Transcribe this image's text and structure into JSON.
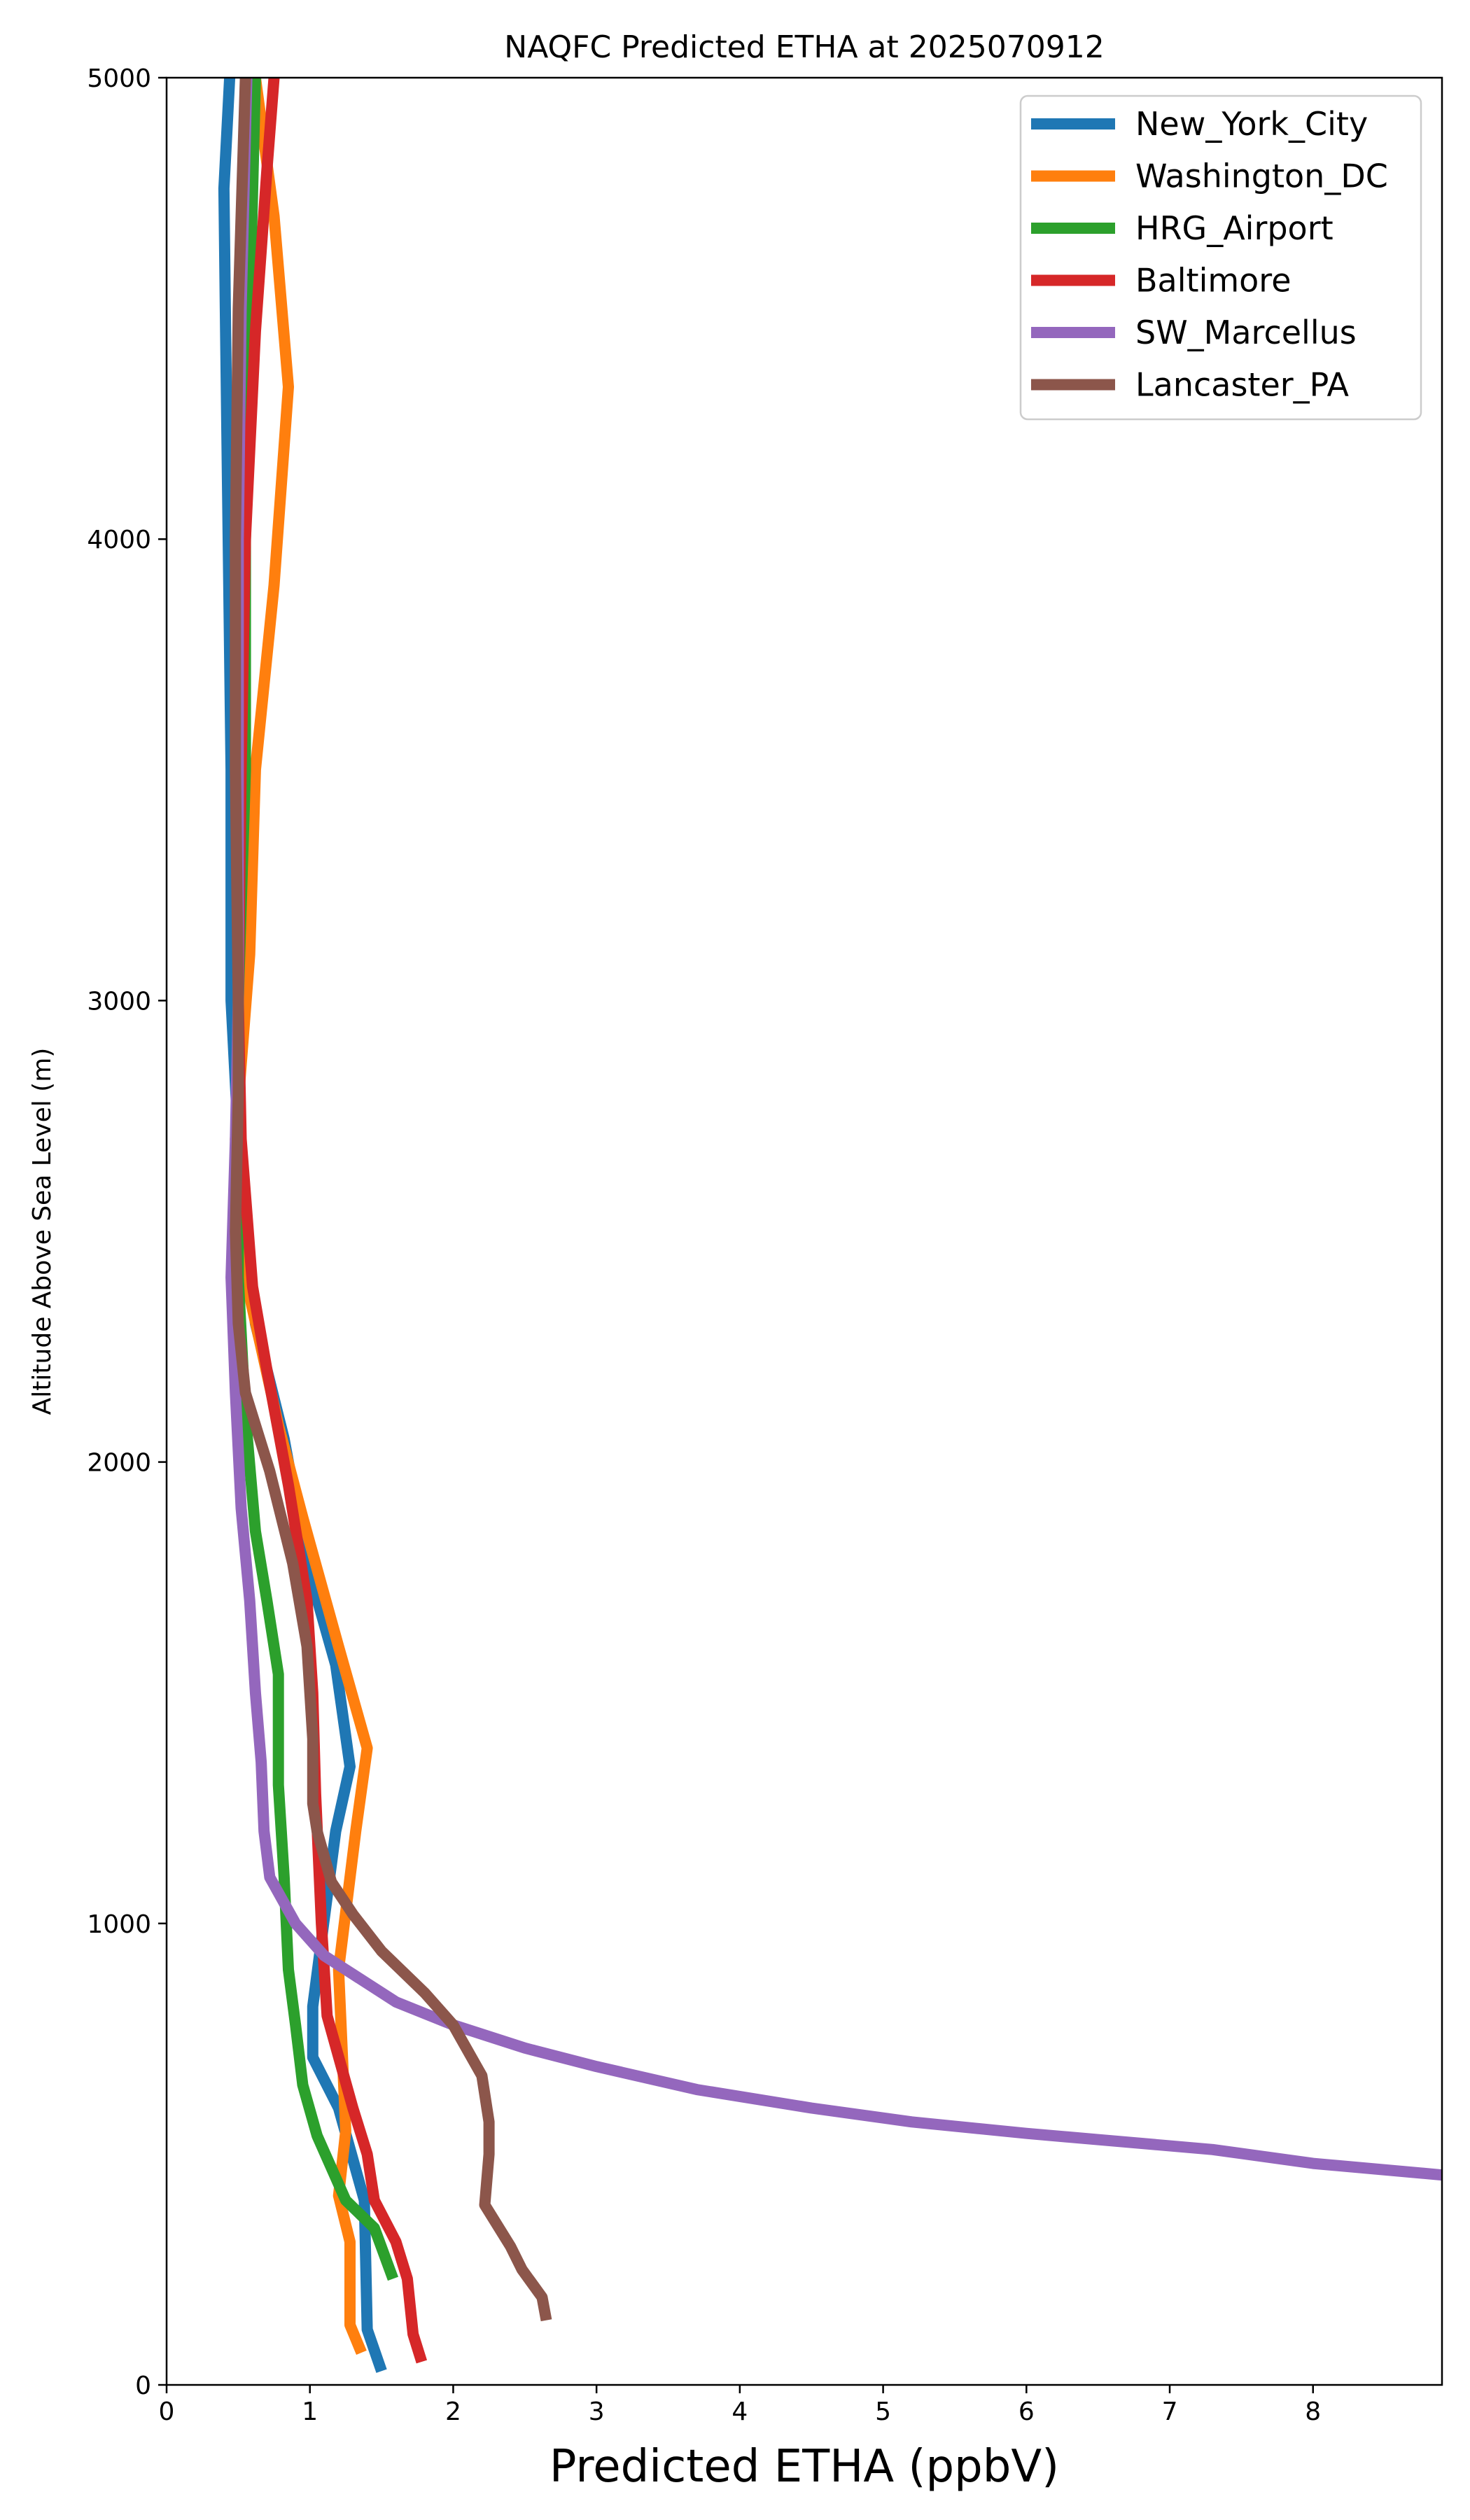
{
  "chart_data": {
    "type": "line",
    "title": "NAQFC Predicted ETHA at 2025070912",
    "xlabel": "Predicted ETHA (ppbV)",
    "ylabel": "Altitude Above Sea Level (m)",
    "xlim": [
      0,
      8.9
    ],
    "ylim": [
      0,
      5000
    ],
    "xticks": [
      0,
      1,
      2,
      3,
      4,
      5,
      6,
      7,
      8
    ],
    "yticks": [
      0,
      1000,
      2000,
      3000,
      4000,
      5000
    ],
    "grid": false,
    "legend_position": "top-right",
    "series": [
      {
        "name": "New_York_City",
        "color": "#1f77b4",
        "points": [
          [
            1.5,
            30
          ],
          [
            1.4,
            120
          ],
          [
            1.38,
            400
          ],
          [
            1.2,
            600
          ],
          [
            1.02,
            710
          ],
          [
            1.02,
            820
          ],
          [
            1.18,
            1200
          ],
          [
            1.28,
            1340
          ],
          [
            1.18,
            1560
          ],
          [
            0.98,
            1780
          ],
          [
            0.82,
            2050
          ],
          [
            0.62,
            2300
          ],
          [
            0.5,
            2700
          ],
          [
            0.45,
            3000
          ],
          [
            0.45,
            3500
          ],
          [
            0.43,
            4000
          ],
          [
            0.41,
            4500
          ],
          [
            0.4,
            4760
          ],
          [
            0.44,
            5000
          ]
        ]
      },
      {
        "name": "Washington_DC",
        "color": "#ff7f0e",
        "points": [
          [
            1.36,
            70
          ],
          [
            1.28,
            130
          ],
          [
            1.28,
            310
          ],
          [
            1.2,
            410
          ],
          [
            1.25,
            550
          ],
          [
            1.2,
            900
          ],
          [
            1.32,
            1200
          ],
          [
            1.4,
            1380
          ],
          [
            1.2,
            1600
          ],
          [
            0.95,
            1880
          ],
          [
            0.78,
            2080
          ],
          [
            0.55,
            2400
          ],
          [
            0.48,
            2700
          ],
          [
            0.58,
            3100
          ],
          [
            0.62,
            3500
          ],
          [
            0.75,
            3900
          ],
          [
            0.85,
            4330
          ],
          [
            0.75,
            4700
          ],
          [
            0.62,
            5000
          ]
        ]
      },
      {
        "name": "HRG_Airport",
        "color": "#2ca02c",
        "points": [
          [
            1.58,
            230
          ],
          [
            1.45,
            340
          ],
          [
            1.25,
            400
          ],
          [
            1.05,
            540
          ],
          [
            0.95,
            650
          ],
          [
            0.9,
            780
          ],
          [
            0.85,
            900
          ],
          [
            0.82,
            1100
          ],
          [
            0.78,
            1300
          ],
          [
            0.78,
            1540
          ],
          [
            0.7,
            1700
          ],
          [
            0.62,
            1850
          ],
          [
            0.55,
            2100
          ],
          [
            0.5,
            2400
          ],
          [
            0.5,
            3000
          ],
          [
            0.55,
            3500
          ],
          [
            0.55,
            4000
          ],
          [
            0.58,
            4500
          ],
          [
            0.62,
            5000
          ]
        ]
      },
      {
        "name": "Baltimore",
        "color": "#d62728",
        "points": [
          [
            1.78,
            50
          ],
          [
            1.72,
            110
          ],
          [
            1.68,
            230
          ],
          [
            1.6,
            310
          ],
          [
            1.45,
            400
          ],
          [
            1.4,
            500
          ],
          [
            1.3,
            600
          ],
          [
            1.12,
            800
          ],
          [
            1.08,
            1000
          ],
          [
            1.04,
            1280
          ],
          [
            1.02,
            1500
          ],
          [
            0.98,
            1700
          ],
          [
            0.85,
            1950
          ],
          [
            0.7,
            2200
          ],
          [
            0.6,
            2380
          ],
          [
            0.52,
            2700
          ],
          [
            0.5,
            3000
          ],
          [
            0.52,
            3500
          ],
          [
            0.55,
            4000
          ],
          [
            0.62,
            4450
          ],
          [
            0.7,
            4800
          ],
          [
            0.75,
            5000
          ]
        ]
      },
      {
        "name": "SW_Marcellus",
        "color": "#9467bd",
        "points": [
          [
            8.9,
            455
          ],
          [
            8.0,
            480
          ],
          [
            7.3,
            510
          ],
          [
            6.0,
            545
          ],
          [
            5.2,
            570
          ],
          [
            4.5,
            600
          ],
          [
            3.7,
            640
          ],
          [
            3.0,
            690
          ],
          [
            2.5,
            730
          ],
          [
            2.0,
            780
          ],
          [
            1.6,
            830
          ],
          [
            1.25,
            900
          ],
          [
            1.1,
            930
          ],
          [
            0.9,
            1000
          ],
          [
            0.72,
            1100
          ],
          [
            0.68,
            1200
          ],
          [
            0.66,
            1350
          ],
          [
            0.62,
            1500
          ],
          [
            0.58,
            1700
          ],
          [
            0.52,
            1900
          ],
          [
            0.48,
            2150
          ],
          [
            0.45,
            2400
          ],
          [
            0.48,
            2700
          ],
          [
            0.5,
            3000
          ],
          [
            0.5,
            3500
          ],
          [
            0.5,
            4000
          ],
          [
            0.52,
            4500
          ],
          [
            0.56,
            5000
          ]
        ]
      },
      {
        "name": "Lancaster_PA",
        "color": "#8c564b",
        "points": [
          [
            2.65,
            140
          ],
          [
            2.62,
            190
          ],
          [
            2.48,
            250
          ],
          [
            2.4,
            300
          ],
          [
            2.22,
            390
          ],
          [
            2.25,
            500
          ],
          [
            2.25,
            570
          ],
          [
            2.2,
            670
          ],
          [
            2.0,
            780
          ],
          [
            1.8,
            850
          ],
          [
            1.5,
            940
          ],
          [
            1.3,
            1020
          ],
          [
            1.15,
            1090
          ],
          [
            1.05,
            1200
          ],
          [
            1.02,
            1260
          ],
          [
            1.02,
            1400
          ],
          [
            1.0,
            1500
          ],
          [
            0.98,
            1600
          ],
          [
            0.88,
            1780
          ],
          [
            0.72,
            1980
          ],
          [
            0.55,
            2150
          ],
          [
            0.5,
            2300
          ],
          [
            0.48,
            2500
          ],
          [
            0.5,
            2800
          ],
          [
            0.5,
            3000
          ],
          [
            0.48,
            3500
          ],
          [
            0.48,
            4000
          ],
          [
            0.5,
            4500
          ],
          [
            0.55,
            5000
          ]
        ]
      }
    ]
  }
}
